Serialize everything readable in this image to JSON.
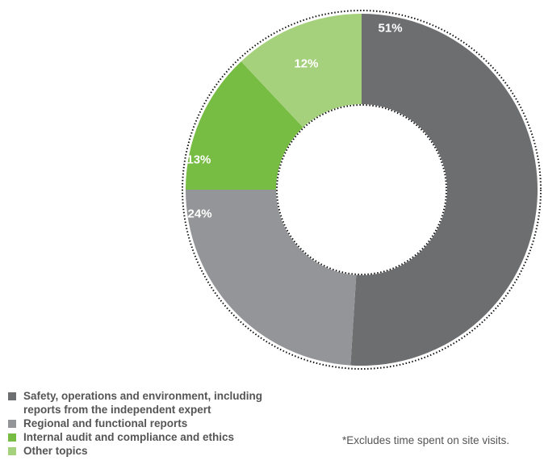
{
  "chart_data": {
    "type": "donut",
    "categories": [
      "Safety, operations and environment, including reports from the independent expert",
      "Regional and functional reports",
      "Internal audit and compliance and ethics",
      "Other topics"
    ],
    "values": [
      51,
      24,
      13,
      12
    ],
    "data_labels": [
      "51%",
      "24%",
      "13%",
      "12%"
    ],
    "unit": "%",
    "colors": [
      "#6d6e70",
      "#939598",
      "#77bc43",
      "#a6d17c"
    ],
    "legend_position": "bottom-left",
    "start_angle": "12 o'clock",
    "direction": "clockwise",
    "outline": "dotted"
  },
  "legend": {
    "items": [
      {
        "label": "Safety, operations and environment, including",
        "label_line2": "reports from the independent expert",
        "color": "#6d6e70"
      },
      {
        "label": "Regional and functional reports",
        "color": "#939598"
      },
      {
        "label": "Internal audit and compliance and ethics",
        "color": "#77bc43"
      },
      {
        "label": "Other topics",
        "color": "#a6d17c"
      }
    ]
  },
  "footnote": "*Excludes time spent on site visits."
}
